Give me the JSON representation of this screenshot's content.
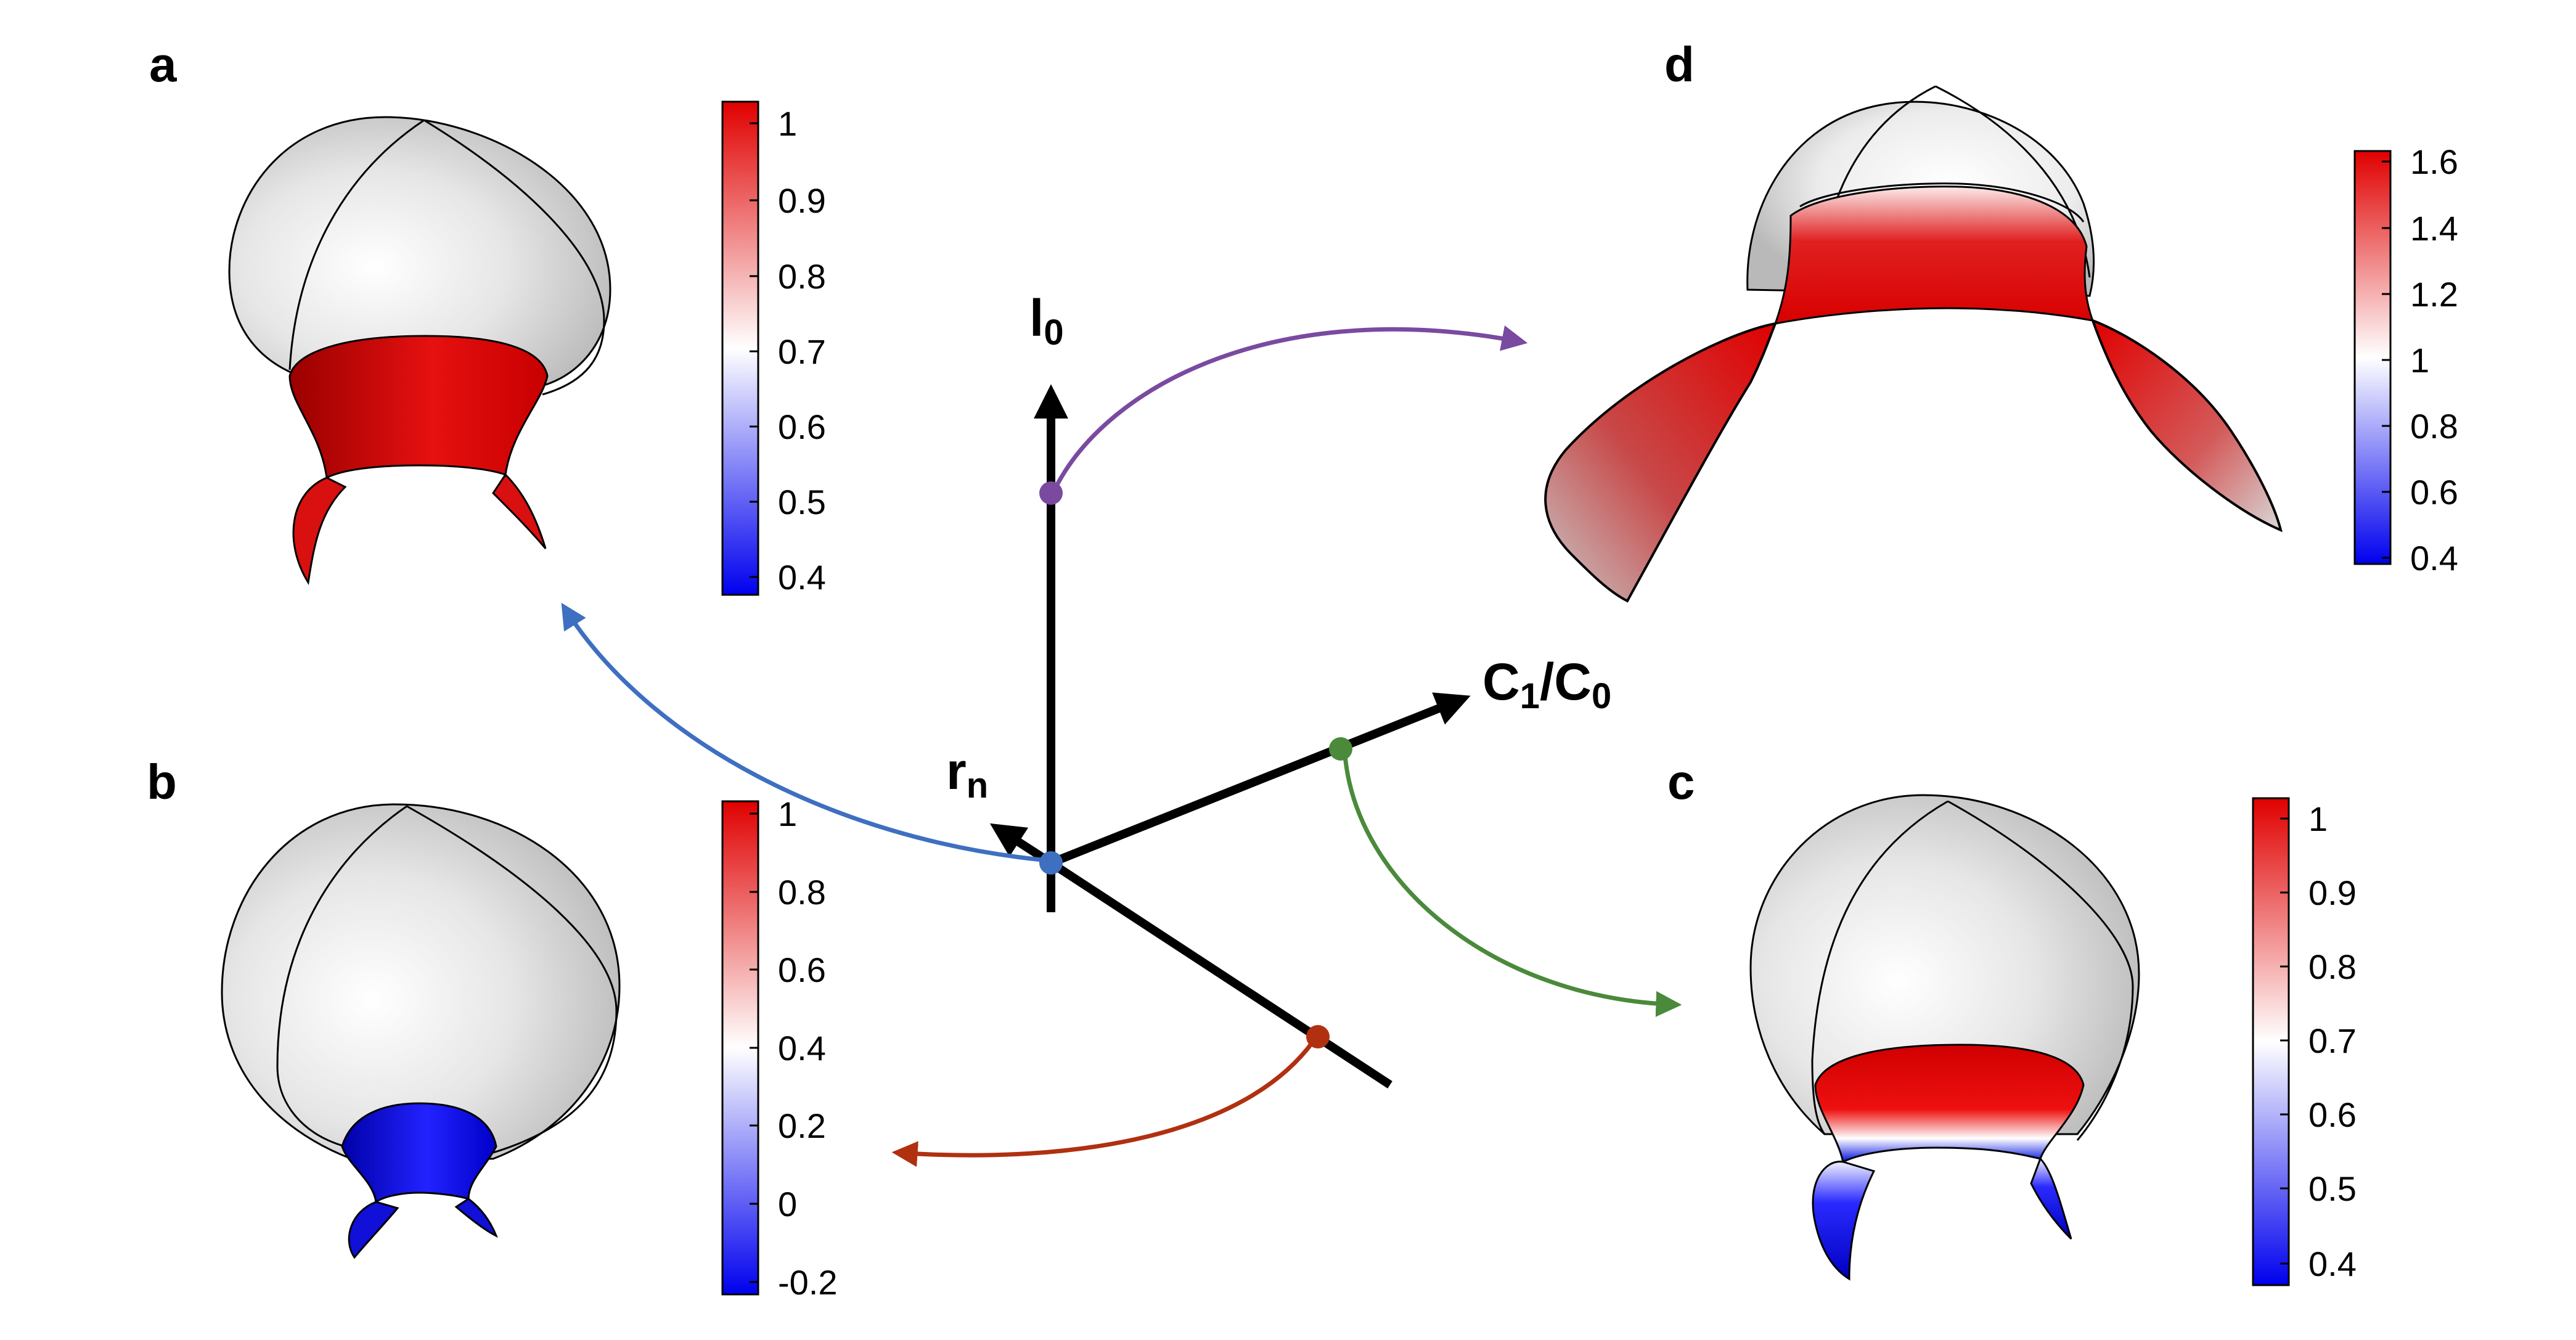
{
  "panels": {
    "a": {
      "label": "a"
    },
    "b": {
      "label": "b"
    },
    "c": {
      "label": "c"
    },
    "d": {
      "label": "d"
    }
  },
  "axes": {
    "l0": {
      "main": "l",
      "sub": "0"
    },
    "c1c0": {
      "main1": "C",
      "sub1": "1",
      "slash": "/C",
      "sub2": "0"
    },
    "rn": {
      "main": "r",
      "sub": "n"
    }
  },
  "colorbars": {
    "a": {
      "ticks": [
        "1",
        "0.9",
        "0.8",
        "0.7",
        "0.6",
        "0.5",
        "0.4"
      ]
    },
    "b": {
      "ticks": [
        "1",
        "0.8",
        "0.6",
        "0.4",
        "0.2",
        "0",
        "-0.2"
      ]
    },
    "c": {
      "ticks": [
        "1",
        "0.9",
        "0.8",
        "0.7",
        "0.6",
        "0.5",
        "0.4"
      ]
    },
    "d": {
      "ticks": [
        "1.6",
        "1.4",
        "1.2",
        "1",
        "0.8",
        "0.6",
        "0.4"
      ]
    }
  },
  "colors": {
    "red": "#e00000",
    "white": "#ffffff",
    "blue": "#0000ee",
    "purple": "#7a4aa0",
    "blue_arrow": "#3e6fc1",
    "green": "#4a8a3a",
    "dark_red": "#b03010",
    "axis": "#000000"
  }
}
